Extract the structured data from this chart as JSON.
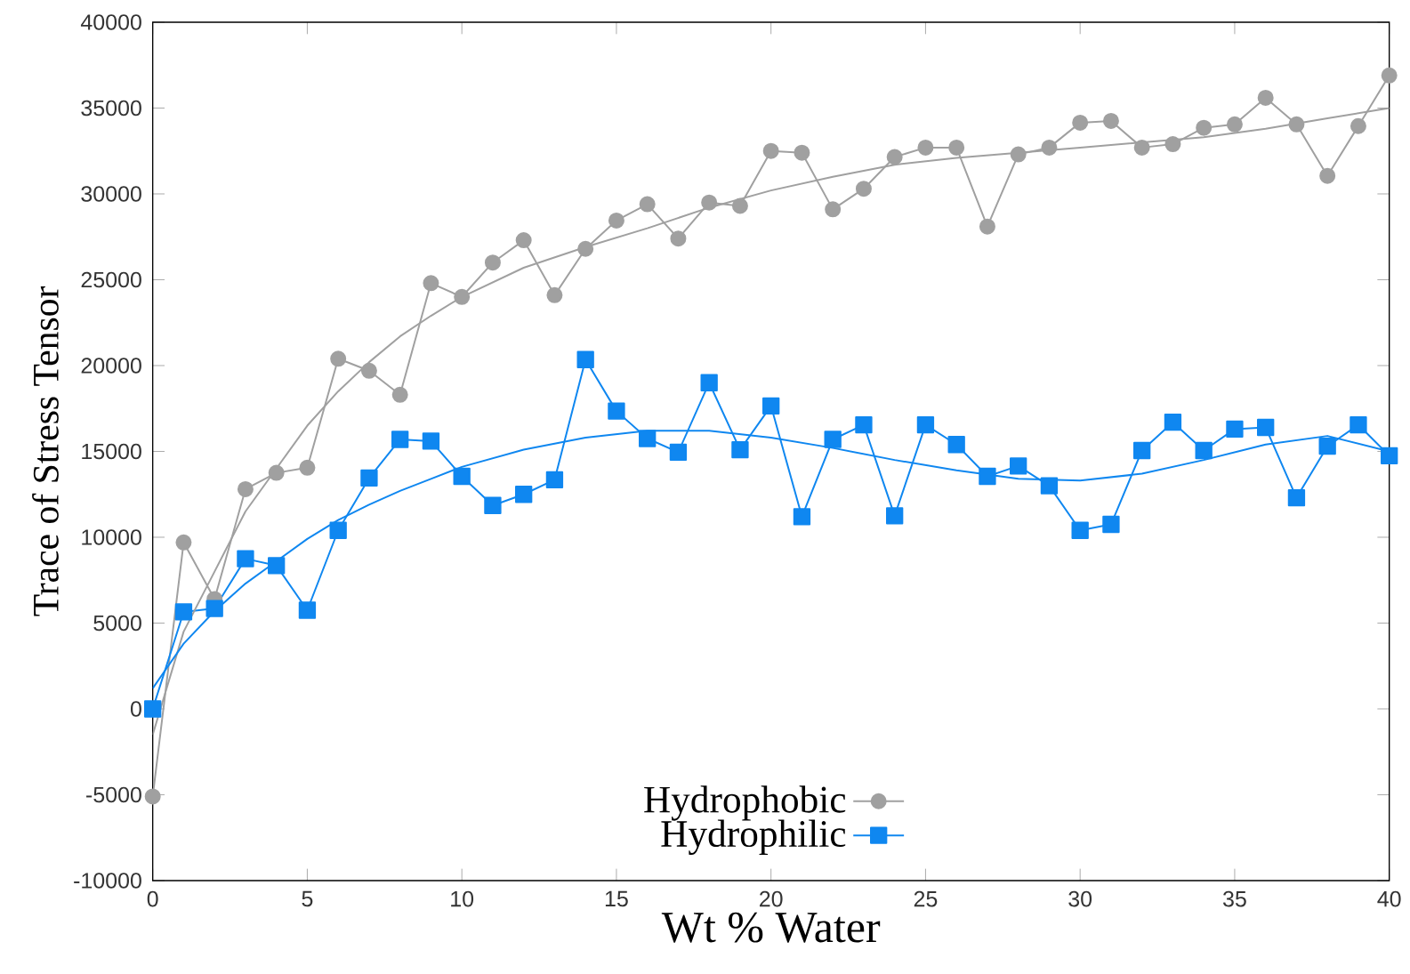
{
  "chart_data": {
    "type": "line",
    "xlabel": "Wt % Water",
    "ylabel": "Trace of Stress Tensor",
    "xlim": [
      0,
      40
    ],
    "ylim": [
      -10000,
      40000
    ],
    "xticks": [
      0,
      5,
      10,
      15,
      20,
      25,
      30,
      35,
      40
    ],
    "yticks": [
      -10000,
      -5000,
      0,
      5000,
      10000,
      15000,
      20000,
      25000,
      30000,
      35000,
      40000
    ],
    "grid": false,
    "legend": "bottom",
    "line_style": "solid",
    "x": [
      0,
      1,
      2,
      3,
      4,
      5,
      6,
      7,
      8,
      9,
      10,
      11,
      12,
      13,
      14,
      15,
      16,
      17,
      18,
      19,
      20,
      21,
      22,
      23,
      24,
      25,
      26,
      27,
      28,
      29,
      30,
      31,
      32,
      33,
      34,
      35,
      36,
      37,
      38,
      39,
      40
    ],
    "series": [
      {
        "name": "Hydrophobic",
        "color": "#a0a0a0",
        "marker": "circle",
        "values": [
          -5100,
          9700,
          6400,
          12800,
          13750,
          14050,
          20400,
          19700,
          18300,
          24800,
          24000,
          26000,
          27300,
          24100,
          26800,
          28450,
          29400,
          27400,
          29500,
          29300,
          32500,
          32400,
          29100,
          30300,
          32150,
          32700,
          32700,
          28100,
          32300,
          32700,
          34150,
          34250,
          32700,
          32900,
          33850,
          34050,
          35600,
          34050,
          31050,
          33950,
          36900
        ]
      },
      {
        "name": "Hydrophilic",
        "color": "#0f87f0",
        "marker": "square",
        "values": [
          0,
          5650,
          5850,
          8750,
          8350,
          5750,
          10400,
          13450,
          15700,
          15600,
          13550,
          11850,
          12500,
          13350,
          20350,
          17350,
          15750,
          14950,
          19000,
          15100,
          17650,
          11200,
          15700,
          16550,
          11250,
          16550,
          15400,
          13550,
          14150,
          13000,
          10400,
          10750,
          15050,
          16700,
          15050,
          16300,
          16400,
          12300,
          15300,
          16550,
          14750
        ]
      },
      {
        "type": "line",
        "color": "#a0a0a0",
        "marker": "none",
        "x": [
          0,
          1,
          2,
          3,
          4,
          5,
          6,
          7,
          8,
          9,
          10,
          12,
          14,
          16,
          18,
          20,
          22,
          24,
          26,
          28,
          30,
          32,
          34,
          36,
          38,
          40
        ],
        "values": [
          -1500,
          4500,
          8000,
          11500,
          14000,
          16500,
          18500,
          20200,
          21700,
          22900,
          24000,
          25700,
          26900,
          28000,
          29200,
          30200,
          31000,
          31700,
          32100,
          32400,
          32700,
          33000,
          33300,
          33800,
          34400,
          35000
        ]
      },
      {
        "type": "line",
        "color": "#0f87f0",
        "marker": "none",
        "x": [
          0,
          1,
          2,
          3,
          4,
          5,
          6,
          7,
          8,
          9,
          10,
          12,
          14,
          16,
          18,
          20,
          22,
          24,
          26,
          28,
          30,
          32,
          34,
          36,
          38,
          40
        ],
        "values": [
          1200,
          3800,
          5700,
          7300,
          8600,
          9900,
          11000,
          11900,
          12700,
          13400,
          14100,
          15100,
          15800,
          16200,
          16200,
          15800,
          15200,
          14500,
          13900,
          13400,
          13300,
          13700,
          14500,
          15400,
          15900,
          15000
        ]
      }
    ]
  }
}
